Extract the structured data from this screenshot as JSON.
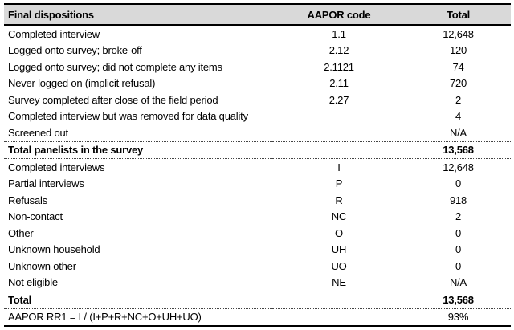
{
  "table": {
    "columns": [
      "Final dispositions",
      "AAPOR code",
      "Total"
    ],
    "rows": [
      {
        "label": "Completed interview",
        "code": "1.1",
        "total": "12,648",
        "style": "normal"
      },
      {
        "label": "Logged onto survey; broke-off",
        "code": "2.12",
        "total": "120",
        "style": "normal"
      },
      {
        "label": "Logged onto survey; did not complete any items",
        "code": "2.1121",
        "total": "74",
        "style": "normal"
      },
      {
        "label": "Never logged on (implicit refusal)",
        "code": "2.11",
        "total": "720",
        "style": "normal"
      },
      {
        "label": "Survey completed after close of the field period",
        "code": "2.27",
        "total": "2",
        "style": "normal"
      },
      {
        "label": "Completed interview but was removed for data quality",
        "code": "",
        "total": "4",
        "style": "normal"
      },
      {
        "label": "Screened out",
        "code": "",
        "total": "N/A",
        "style": "normal"
      },
      {
        "label": "Total panelists in the survey",
        "code": "",
        "total": "13,568",
        "style": "total"
      },
      {
        "label": "Completed interviews",
        "code": "I",
        "total": "12,648",
        "style": "normal"
      },
      {
        "label": "Partial interviews",
        "code": "P",
        "total": "0",
        "style": "normal"
      },
      {
        "label": "Refusals",
        "code": "R",
        "total": "918",
        "style": "normal"
      },
      {
        "label": "Non-contact",
        "code": "NC",
        "total": "2",
        "style": "normal"
      },
      {
        "label": "Other",
        "code": "O",
        "total": "0",
        "style": "normal"
      },
      {
        "label": "Unknown household",
        "code": "UH",
        "total": "0",
        "style": "normal"
      },
      {
        "label": "Unknown other",
        "code": "UO",
        "total": "0",
        "style": "normal"
      },
      {
        "label": "Not eligible",
        "code": "NE",
        "total": "N/A",
        "style": "normal"
      },
      {
        "label": "Total",
        "code": "",
        "total": "13,568",
        "style": "total"
      },
      {
        "label": "AAPOR RR1 = I / (I+P+R+NC+O+UH+UO)",
        "code": "",
        "total": "93%",
        "style": "formula"
      }
    ],
    "colors": {
      "header_bg": "#d9d9d9",
      "text": "#000000",
      "solid_rule": "#000000",
      "dotted_rule": "#444444"
    }
  }
}
